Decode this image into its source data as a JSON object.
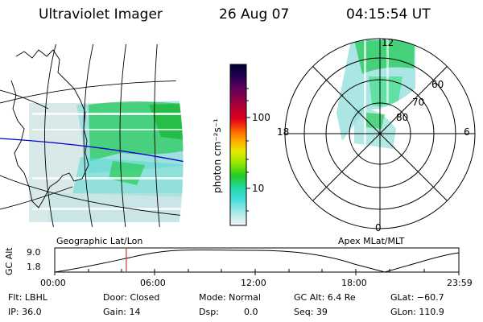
{
  "header": {
    "instrument": "Ultraviolet Imager",
    "date": "26 Aug 07",
    "time": "04:15:54 UT"
  },
  "geo_map": {
    "label": "Geographic Lat/Lon"
  },
  "polar_plot": {
    "label": "Apex MLat/MLT",
    "mlt_labels": [
      "12",
      "18",
      "6",
      "0"
    ],
    "mlat_labels": [
      "60",
      "70",
      "80"
    ]
  },
  "colorbar": {
    "unit_label": "photon cm⁻²s⁻¹",
    "ticks": [
      "100",
      "10"
    ],
    "colors": [
      "#000030",
      "#200050",
      "#5a0060",
      "#a0003a",
      "#e0001a",
      "#ff6a00",
      "#ffb000",
      "#e8e800",
      "#9ae800",
      "#22cc22",
      "#22d8a8",
      "#44dddd",
      "#a8eaea",
      "#f4f6f6"
    ]
  },
  "altitude_track": {
    "ylabel": "GC Alt",
    "yticks": [
      "9.0",
      "1.8"
    ],
    "xticks": [
      "00:00",
      "06:00",
      "12:00",
      "18:00",
      "23:59"
    ],
    "current_time_fraction": 0.177
  },
  "info": {
    "flt": "Flt: LBHL",
    "ip": "IP: 36.0",
    "door": "Door: Closed",
    "gain": "Gain: 14",
    "mode": "Mode: Normal",
    "dsp_label": "Dsp:",
    "dsp_value": "0.0",
    "gc_alt": "GC Alt: 6.4 Re",
    "seq": "Seq: 39",
    "glat": "GLat: −60.7",
    "glon": "GLon: 110.9"
  },
  "colors": {
    "track_marker": "#c0392b",
    "map_line": "#0000cc",
    "aurora_green": "#22cc44",
    "aurora_cyan": "#44dddd"
  }
}
